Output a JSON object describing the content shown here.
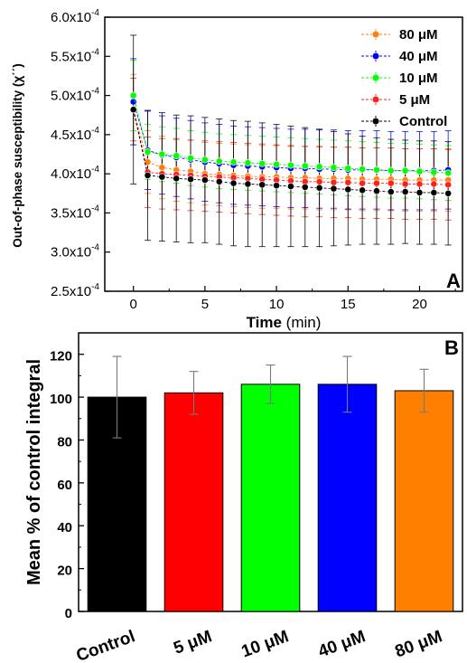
{
  "chart_data": [
    {
      "type": "line",
      "panel_letter": "A",
      "xlabel_bold": "Time",
      "xlabel_unit": " (min)",
      "ylabel": "Out-of-phase susceptibility (χ΄΄)",
      "xlim": [
        -2,
        23
      ],
      "ylim": [
        0.00025,
        0.0006
      ],
      "x_ticks": [
        0,
        5,
        10,
        15,
        20
      ],
      "y_ticks": [
        {
          "value": 0.00025,
          "mantissa": "2.5x10",
          "exp": "-4"
        },
        {
          "value": 0.0003,
          "mantissa": "3.0x10",
          "exp": "-4"
        },
        {
          "value": 0.00035,
          "mantissa": "3.5x10",
          "exp": "-4"
        },
        {
          "value": 0.0004,
          "mantissa": "4.0x10",
          "exp": "-4"
        },
        {
          "value": 0.00045,
          "mantissa": "4.5x10",
          "exp": "-4"
        },
        {
          "value": 0.0005,
          "mantissa": "5.0x10",
          "exp": "-4"
        },
        {
          "value": 0.00055,
          "mantissa": "5.5x10",
          "exp": "-4"
        },
        {
          "value": 0.0006,
          "mantissa": "6.0x10",
          "exp": "-4"
        }
      ],
      "x": [
        0,
        1,
        2,
        3,
        4,
        5,
        6,
        7,
        8,
        9,
        10,
        11,
        12,
        13,
        14,
        15,
        16,
        17,
        18,
        19,
        20,
        21,
        22
      ],
      "legend_position": "top-right",
      "series": [
        {
          "name": "80 μM",
          "color": "#ff7f0e",
          "values": [
            0.000482,
            0.000415,
            0.000408,
            0.000405,
            0.000403,
            0.0004,
            0.000399,
            0.000398,
            0.000397,
            0.000396,
            0.000396,
            0.000395,
            0.000395,
            0.000394,
            0.000394,
            0.000394,
            0.000393,
            0.000393,
            0.000393,
            0.000392,
            0.000392,
            0.000392,
            0.000392
          ],
          "error": [
            4.5e-05,
            4e-05,
            4e-05,
            4e-05,
            4e-05,
            4e-05,
            4e-05,
            4e-05,
            4e-05,
            4e-05,
            4e-05,
            4e-05,
            4e-05,
            4e-05,
            4e-05,
            4e-05,
            4e-05,
            4e-05,
            4e-05,
            4e-05,
            4e-05,
            4e-05,
            4e-05
          ]
        },
        {
          "name": "40 μM",
          "color": "#0000ff",
          "values": [
            0.000492,
            0.00043,
            0.000424,
            0.000421,
            0.000418,
            0.000415,
            0.000413,
            0.000411,
            0.00041,
            0.000409,
            0.000408,
            0.000407,
            0.000407,
            0.000406,
            0.000406,
            0.000405,
            0.000405,
            0.000405,
            0.000404,
            0.000404,
            0.000404,
            0.000404,
            0.000405
          ],
          "error": [
            5.5e-05,
            5e-05,
            5e-05,
            5e-05,
            5e-05,
            5e-05,
            5e-05,
            5e-05,
            5e-05,
            5e-05,
            5e-05,
            5e-05,
            5e-05,
            5e-05,
            5e-05,
            5e-05,
            5e-05,
            5e-05,
            5e-05,
            5e-05,
            5e-05,
            5e-05,
            5e-05
          ]
        },
        {
          "name": "10 μM",
          "color": "#00ff00",
          "values": [
            0.0005,
            0.000428,
            0.000425,
            0.000423,
            0.00042,
            0.000418,
            0.000416,
            0.000415,
            0.000414,
            0.000413,
            0.000412,
            0.000411,
            0.00041,
            0.000409,
            0.000408,
            0.000407,
            0.000406,
            0.000405,
            0.000404,
            0.000404,
            0.000403,
            0.000402,
            0.000401
          ],
          "error": [
            4.5e-05,
            3.5e-05,
            3.5e-05,
            3.5e-05,
            3.5e-05,
            3.5e-05,
            3.5e-05,
            3.5e-05,
            3.5e-05,
            3.5e-05,
            3.5e-05,
            3.5e-05,
            3.5e-05,
            3.5e-05,
            3.5e-05,
            3.5e-05,
            3.5e-05,
            3.5e-05,
            3.5e-05,
            3.5e-05,
            3.5e-05,
            3.5e-05,
            3.5e-05
          ]
        },
        {
          "name": "5 μM",
          "color": "#ff2020",
          "values": [
            0.000482,
            0.000402,
            0.0004,
            0.000399,
            0.000398,
            0.000397,
            0.000396,
            0.000395,
            0.000394,
            0.000393,
            0.000392,
            0.000391,
            0.00039,
            0.00039,
            0.000389,
            0.000389,
            0.000388,
            0.000388,
            0.000388,
            0.000387,
            0.000387,
            0.000387,
            0.000386
          ],
          "error": [
            4e-05,
            4.5e-05,
            4.5e-05,
            4.5e-05,
            4.5e-05,
            4.5e-05,
            4.5e-05,
            4.5e-05,
            4.5e-05,
            4.5e-05,
            4.5e-05,
            4.5e-05,
            4.5e-05,
            4.5e-05,
            4.5e-05,
            4.5e-05,
            4.5e-05,
            4.5e-05,
            4.5e-05,
            4.5e-05,
            4.5e-05,
            4.5e-05,
            4.5e-05
          ]
        },
        {
          "name": "Control",
          "color": "#000000",
          "values": [
            0.000482,
            0.000398,
            0.000396,
            0.000394,
            0.000393,
            0.000392,
            0.00039,
            0.000388,
            0.000387,
            0.000386,
            0.000385,
            0.000384,
            0.000383,
            0.000382,
            0.000381,
            0.00038,
            0.000379,
            0.000378,
            0.000377,
            0.000377,
            0.000376,
            0.000376,
            0.000375
          ],
          "error": [
            9.5e-05,
            8.3e-05,
            8.2e-05,
            8.1e-05,
            8.1e-05,
            8e-05,
            8e-05,
            8e-05,
            8e-05,
            7.9e-05,
            7.8e-05,
            7.7e-05,
            7.6e-05,
            7.5e-05,
            7.3e-05,
            7.1e-05,
            6.9e-05,
            6.8e-05,
            6.7e-05,
            6.6e-05,
            6.6e-05,
            6.6e-05,
            6.6e-05
          ]
        }
      ]
    },
    {
      "type": "bar",
      "panel_letter": "B",
      "ylabel": "Mean % of control integral",
      "xlabel": "",
      "ylim": [
        0,
        130
      ],
      "y_ticks": [
        0,
        20,
        40,
        60,
        80,
        100,
        120
      ],
      "categories": [
        "Control",
        "5 μM",
        "10 μM",
        "40 μM",
        "80 μM"
      ],
      "values": [
        100,
        102,
        106,
        106,
        103
      ],
      "errors": [
        19,
        10,
        9,
        13,
        10
      ],
      "colors": [
        "#000000",
        "#ff0000",
        "#00ff00",
        "#0000ff",
        "#ff7f00"
      ]
    }
  ]
}
